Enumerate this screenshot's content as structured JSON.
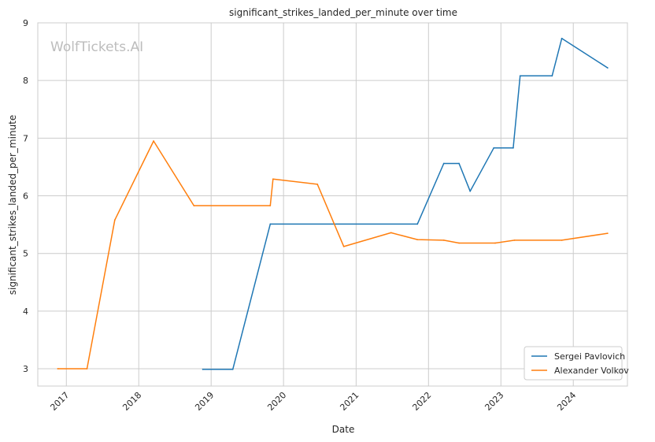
{
  "chart_data": {
    "type": "line",
    "title": "significant_strikes_landed_per_minute over time",
    "xlabel": "Date",
    "ylabel": "significant_strikes_landed_per_minute",
    "watermark": "WolfTickets.AI",
    "x_ticks": [
      "2017",
      "2018",
      "2019",
      "2020",
      "2021",
      "2022",
      "2023",
      "2024"
    ],
    "y_ticks": [
      "3",
      "4",
      "5",
      "6",
      "7",
      "8",
      "9"
    ],
    "xlim": [
      "2016-08-10",
      "2024-09-30"
    ],
    "ylim": [
      2.7,
      9.0
    ],
    "grid": true,
    "legend_position": "bottom-right",
    "series": [
      {
        "name": "Sergei Pavlovich",
        "color": "#1f77b4",
        "points": [
          [
            "2018-11-20",
            2.99
          ],
          [
            "2019-04-20",
            2.99
          ],
          [
            "2019-10-26",
            5.51
          ],
          [
            "2021-11-06",
            5.51
          ],
          [
            "2022-03-19",
            6.56
          ],
          [
            "2022-06-04",
            6.56
          ],
          [
            "2022-07-30",
            6.08
          ],
          [
            "2022-11-26",
            6.83
          ],
          [
            "2023-03-04",
            6.83
          ],
          [
            "2023-04-08",
            8.08
          ],
          [
            "2023-09-16",
            8.08
          ],
          [
            "2023-11-04",
            8.73
          ],
          [
            "2024-06-22",
            8.22
          ]
        ]
      },
      {
        "name": "Alexander Volkov",
        "color": "#ff7f0e",
        "points": [
          [
            "2016-11-19",
            3.0
          ],
          [
            "2017-04-15",
            3.0
          ],
          [
            "2017-09-02",
            5.58
          ],
          [
            "2018-03-17",
            6.95
          ],
          [
            "2018-10-06",
            5.83
          ],
          [
            "2019-10-26",
            5.83
          ],
          [
            "2019-11-09",
            6.29
          ],
          [
            "2020-06-20",
            6.2
          ],
          [
            "2020-10-31",
            5.12
          ],
          [
            "2021-06-26",
            5.36
          ],
          [
            "2021-11-06",
            5.24
          ],
          [
            "2022-03-19",
            5.23
          ],
          [
            "2022-06-04",
            5.18
          ],
          [
            "2022-12-03",
            5.18
          ],
          [
            "2023-03-11",
            5.23
          ],
          [
            "2023-11-04",
            5.23
          ],
          [
            "2024-06-22",
            5.35
          ]
        ]
      }
    ]
  }
}
